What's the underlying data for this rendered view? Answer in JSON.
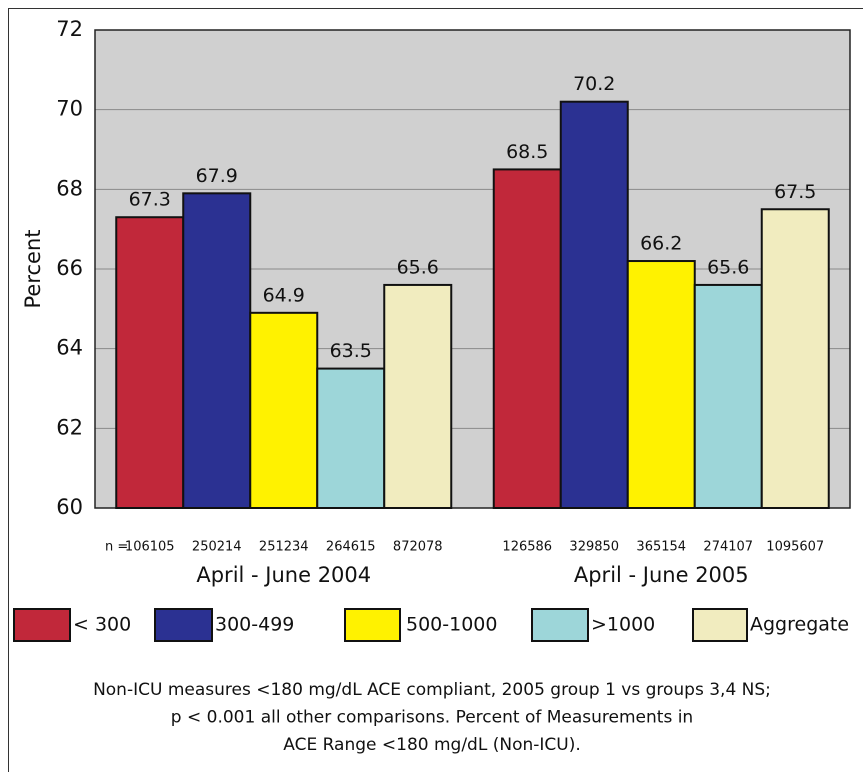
{
  "chart_data": {
    "type": "bar",
    "ylabel": "Percent",
    "categories": [
      "April - June 2004",
      "April - June 2005"
    ],
    "n_label": "n =",
    "series": [
      {
        "name": "< 300",
        "color": "#c1283a",
        "values": [
          67.3,
          68.5
        ],
        "n": [
          106105,
          126586
        ]
      },
      {
        "name": "300-499",
        "color": "#2b3192",
        "values": [
          67.9,
          70.2
        ],
        "n": [
          250214,
          329850
        ]
      },
      {
        "name": "500-1000",
        "color": "#fff200",
        "values": [
          64.9,
          66.2
        ],
        "n": [
          251234,
          365154
        ]
      },
      {
        "name": ">1000",
        "color": "#9dd6d9",
        "values": [
          63.5,
          65.6
        ],
        "n": [
          264615,
          274107
        ]
      },
      {
        "name": "Aggregate",
        "color": "#f1ecbf",
        "values": [
          65.6,
          67.5
        ],
        "n": [
          872078,
          1095607
        ]
      }
    ],
    "ylim": [
      60,
      72
    ],
    "yticks": [
      60,
      62,
      64,
      66,
      68,
      70,
      72
    ],
    "grid": true,
    "caption": [
      "Non-ICU measures <180 mg/dL ACE compliant, 2005 group 1 vs groups 3,4 NS;",
      "p < 0.001 all other comparisons. Percent of Measurements in",
      "ACE Range <180 mg/dL (Non-ICU)."
    ]
  }
}
